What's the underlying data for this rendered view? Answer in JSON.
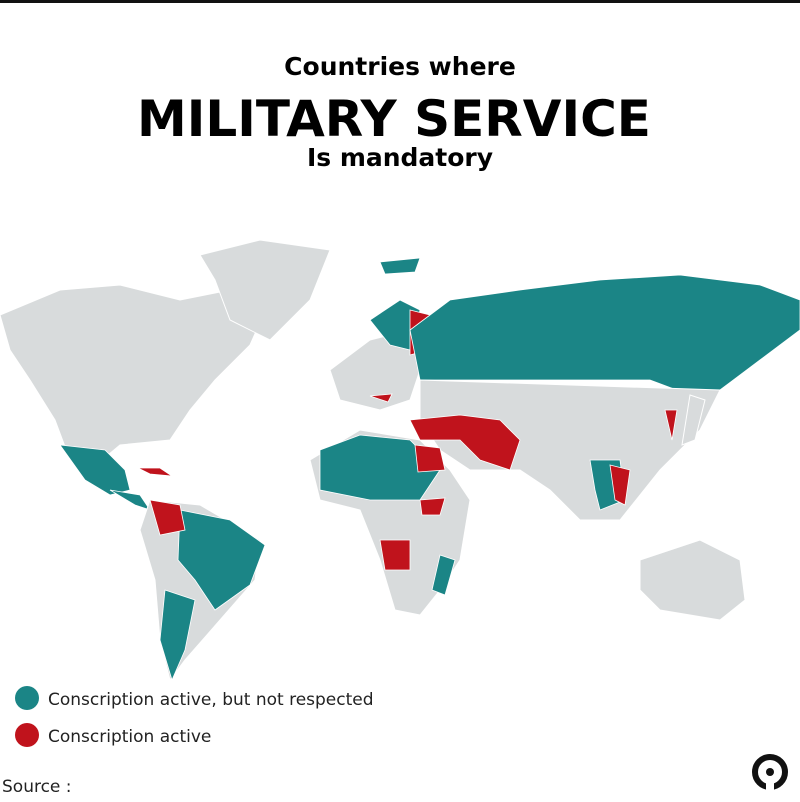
{
  "header": {
    "line1": "Countries where",
    "line2": "MILITARY SERVICE",
    "line3": "Is mandatory"
  },
  "legend": [
    {
      "name": "Conscription active, but not respected",
      "color": "#1b8586"
    },
    {
      "name": "Conscription active",
      "color": "#c0131c"
    }
  ],
  "footer": {
    "source": "Source :"
  }
}
